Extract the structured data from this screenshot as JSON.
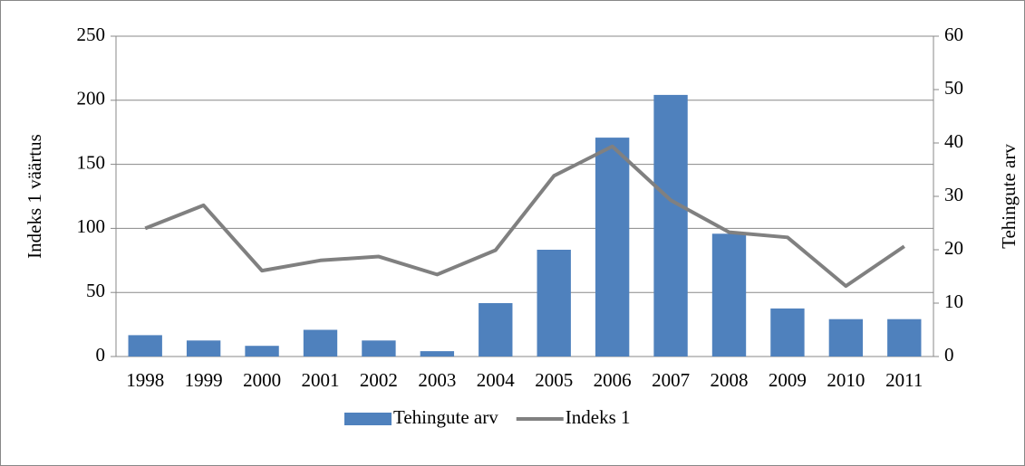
{
  "chart_data": {
    "type": "bar-line",
    "categories": [
      "1998",
      "1999",
      "2000",
      "2001",
      "2002",
      "2003",
      "2004",
      "2005",
      "2006",
      "2007",
      "2008",
      "2009",
      "2010",
      "2011"
    ],
    "y_label": "Indeks 1 väärtus",
    "y2_label": "Tehingute arv",
    "ylim": [
      0,
      250
    ],
    "yticks": [
      0,
      50,
      100,
      150,
      200,
      250
    ],
    "y2lim": [
      0,
      60
    ],
    "y2ticks": [
      0,
      10,
      20,
      30,
      40,
      50,
      60
    ],
    "grid": true,
    "legend": "bottom",
    "series": [
      {
        "name": "Tehingute arv",
        "kind": "bar",
        "axis": "y2",
        "color": "#4f81bd",
        "values": [
          4,
          3,
          2,
          5,
          3,
          1,
          10,
          20,
          41,
          49,
          23,
          9,
          7,
          7
        ]
      },
      {
        "name": "Indeks 1",
        "kind": "line",
        "axis": "y",
        "color": "#808080",
        "values": [
          100,
          118,
          67,
          75,
          78,
          64,
          83,
          141,
          164,
          122,
          97,
          93,
          55,
          86
        ]
      }
    ]
  }
}
